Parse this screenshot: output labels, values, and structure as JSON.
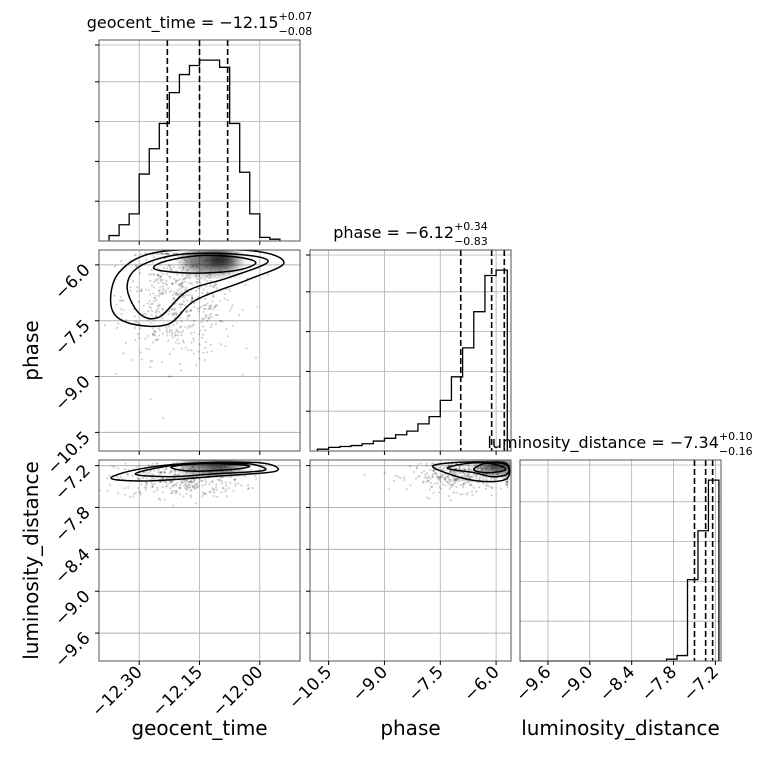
{
  "chart_data": {
    "type": "corner",
    "parameters": [
      "geocent_time",
      "phase",
      "luminosity_distance"
    ],
    "axis_ranges": {
      "geocent_time": [
        -12.4,
        -11.9
      ],
      "phase": [
        -11.0,
        -5.6
      ],
      "luminosity_distance": [
        -10.0,
        -7.12
      ]
    },
    "ticks": {
      "geocent_time": [
        -12.3,
        -12.15,
        -12.0
      ],
      "phase": [
        -10.5,
        -9.0,
        -7.5,
        -6.0
      ],
      "luminosity_distance": [
        -9.6,
        -9.0,
        -8.4,
        -7.8,
        -7.2
      ]
    },
    "tick_labels": {
      "geocent_time": [
        "−12.30",
        "−12.15",
        "−12.00"
      ],
      "phase": [
        "−10.5",
        "−9.0",
        "−7.5",
        "−6.0"
      ],
      "luminosity_distance": [
        "−9.6",
        "−9.0",
        "−8.4",
        "−7.8",
        "−7.2"
      ]
    },
    "titles": {
      "geocent_time": {
        "prefix": "geocent_time = −12.15",
        "plus": "+0.07",
        "minus": "−0.08"
      },
      "phase": {
        "prefix": "phase = −6.12",
        "plus": "+0.34",
        "minus": "−0.83"
      },
      "luminosity_distance": {
        "prefix": "luminosity_distance = −7.34",
        "plus": "+0.10",
        "minus": "−0.16"
      }
    },
    "quantiles": {
      "geocent_time": [
        -12.23,
        -12.15,
        -12.08
      ],
      "phase": [
        -6.95,
        -6.12,
        -5.78
      ],
      "luminosity_distance": [
        -7.5,
        -7.34,
        -7.24
      ]
    },
    "hist": {
      "geocent_time": {
        "edges": [
          -12.375,
          -12.35,
          -12.325,
          -12.3,
          -12.275,
          -12.25,
          -12.225,
          -12.2,
          -12.175,
          -12.15,
          -12.125,
          -12.1,
          -12.075,
          -12.05,
          -12.025,
          -12.0,
          -11.975,
          -11.95
        ],
        "counts": [
          0.03,
          0.09,
          0.15,
          0.37,
          0.51,
          0.65,
          0.82,
          0.92,
          0.97,
          1.0,
          1.0,
          0.96,
          0.65,
          0.38,
          0.15,
          0.02,
          0.01
        ]
      },
      "phase": {
        "edges": [
          -10.8,
          -10.5,
          -10.2,
          -9.9,
          -9.6,
          -9.3,
          -9.0,
          -8.7,
          -8.4,
          -8.1,
          -7.8,
          -7.5,
          -7.2,
          -6.9,
          -6.6,
          -6.3,
          -6.0,
          -5.7
        ],
        "counts": [
          0.01,
          0.02,
          0.025,
          0.03,
          0.04,
          0.055,
          0.07,
          0.09,
          0.11,
          0.15,
          0.19,
          0.28,
          0.41,
          0.57,
          0.77,
          0.97,
          1.0
        ]
      },
      "luminosity_distance": {
        "edges": [
          -10.0,
          -9.85,
          -9.7,
          -9.55,
          -9.4,
          -9.25,
          -9.1,
          -8.95,
          -8.8,
          -8.65,
          -8.5,
          -8.35,
          -8.2,
          -8.05,
          -7.9,
          -7.75,
          -7.6,
          -7.45,
          -7.3,
          -7.15
        ],
        "counts": [
          0,
          0,
          0,
          0,
          0,
          0,
          0,
          0,
          0,
          0,
          0,
          0,
          0,
          0,
          0.01,
          0.03,
          0.45,
          0.72,
          1.0
        ]
      }
    },
    "grid": true,
    "colors": {
      "density": "#000000",
      "grid": "#b0b0b0",
      "frame": "#555555"
    }
  }
}
